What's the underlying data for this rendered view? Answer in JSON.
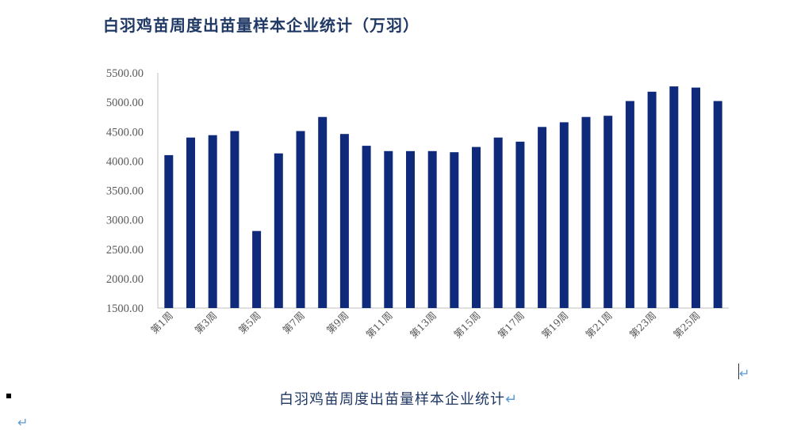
{
  "chart_data": {
    "type": "bar",
    "title": "白羽鸡苗周度出苗量样本企业统计（万羽）",
    "ylim": [
      1500,
      5500
    ],
    "yticks": [
      "5500.00",
      "5000.00",
      "4500.00",
      "4000.00",
      "3500.00",
      "3000.00",
      "2500.00",
      "2000.00",
      "1500.00"
    ],
    "categories": [
      "第1周",
      "第2周",
      "第3周",
      "第4周",
      "第5周",
      "第6周",
      "第7周",
      "第8周",
      "第9周",
      "第10周",
      "第11周",
      "第12周",
      "第13周",
      "第14周",
      "第15周",
      "第16周",
      "第17周",
      "第18周",
      "第19周",
      "第20周",
      "第21周",
      "第22周",
      "第23周",
      "第24周",
      "第25周",
      "第26周"
    ],
    "x_tick_labels": [
      "第1周",
      "第3周",
      "第5周",
      "第7周",
      "第9周",
      "第11周",
      "第13周",
      "第15周",
      "第17周",
      "第19周",
      "第21周",
      "第23周",
      "第25周"
    ],
    "values": [
      4100,
      4400,
      4440,
      4510,
      2810,
      4130,
      4510,
      4750,
      4460,
      4260,
      4170,
      4170,
      4170,
      4150,
      4240,
      4400,
      4330,
      4580,
      4660,
      4750,
      4770,
      5020,
      5180,
      5270,
      5250,
      5020
    ],
    "bar_color": "#0f2a7a",
    "grid": false,
    "legend": "none"
  },
  "caption": {
    "text": "白羽鸡苗周度出苗量样本企业统计",
    "return_mark": "↵"
  },
  "para_marks": [
    "↵",
    "↵"
  ]
}
